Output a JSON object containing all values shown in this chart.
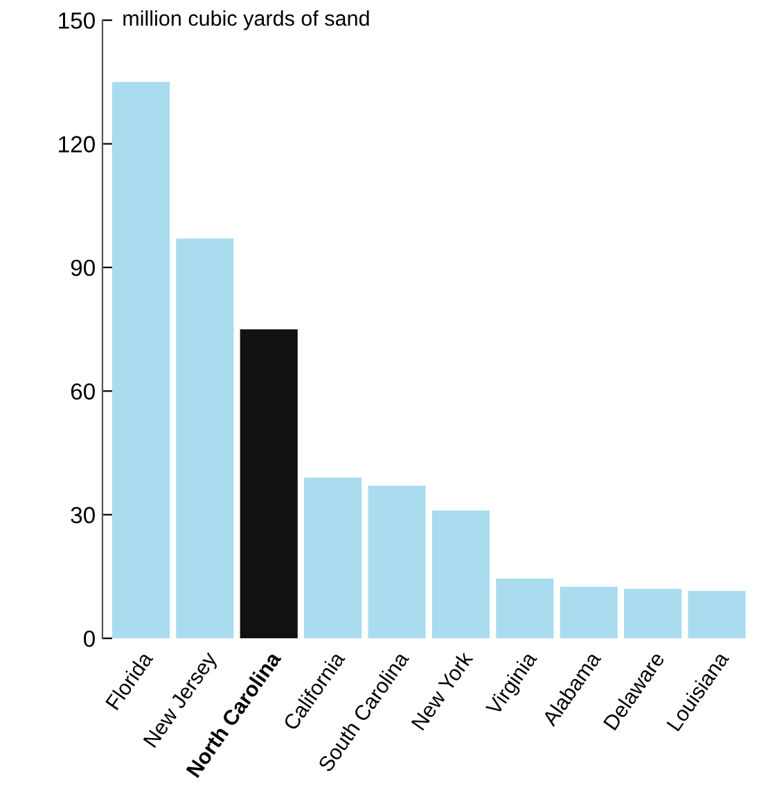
{
  "chart_data": {
    "type": "bar",
    "ylabel": "million cubic yards of sand",
    "categories": [
      "Florida",
      "New Jersey",
      "North Carolina",
      "California",
      "South Carolina",
      "New York",
      "Virginia",
      "Alabama",
      "Delaware",
      "Louisiana"
    ],
    "values": [
      135,
      97,
      75,
      39,
      37,
      31,
      14.5,
      12.5,
      12,
      11.5
    ],
    "colors": [
      "#a9dcee",
      "#a9dcee",
      "#111111",
      "#a9dcee",
      "#a9dcee",
      "#a9dcee",
      "#a9dcee",
      "#a9dcee",
      "#a9dcee",
      "#a9dcee"
    ],
    "ylim": [
      0,
      150
    ],
    "yticks": [
      0,
      30,
      60,
      90,
      120,
      150
    ],
    "grid": false,
    "legend": false
  }
}
